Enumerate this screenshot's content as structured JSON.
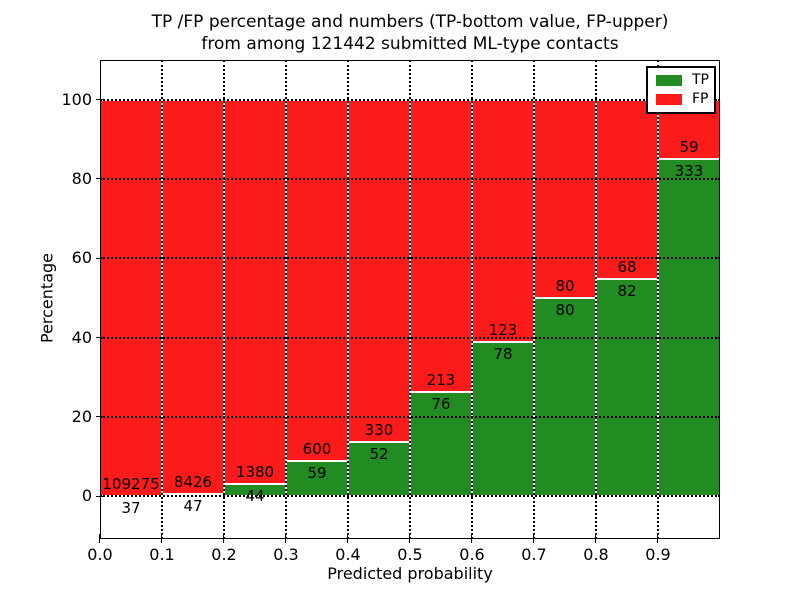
{
  "figure": {
    "title_line1": "TP /FP percentage and numbers (TP-bottom value, FP-upper)",
    "title_line2": "from among 121442 submitted ML-type contacts",
    "xlabel": "Predicted probability",
    "ylabel": "Percentage"
  },
  "legend": {
    "position": "upper right",
    "items": [
      {
        "label": "TP",
        "color": "#228b22"
      },
      {
        "label": "FP",
        "color": "#fb1b1b"
      }
    ]
  },
  "chart_data": {
    "type": "bar",
    "stacked": true,
    "title": "TP /FP percentage and numbers (TP-bottom value, FP-upper) from among 121442 submitted ML-type contacts",
    "xlabel": "Predicted probability",
    "ylabel": "Percentage",
    "total_contacts": 121442,
    "grid": true,
    "xlim": [
      0.0,
      1.0
    ],
    "ylim": [
      -10.75,
      110
    ],
    "bin_width": 0.1,
    "x_bin_edges": [
      0.0,
      0.1,
      0.2,
      0.3,
      0.4,
      0.5,
      0.6,
      0.7,
      0.8,
      0.9,
      1.0
    ],
    "xtick_labels": [
      "0.0",
      "0.1",
      "0.2",
      "0.3",
      "0.4",
      "0.5",
      "0.6",
      "0.7",
      "0.8",
      "0.9"
    ],
    "yticks": [
      0,
      20,
      40,
      60,
      80,
      100
    ],
    "series": [
      {
        "name": "TP",
        "color": "#228b22",
        "counts": [
          37,
          47,
          44,
          59,
          52,
          76,
          78,
          80,
          82,
          333
        ],
        "percent": [
          0.034,
          0.555,
          3.09,
          8.95,
          13.61,
          26.3,
          38.81,
          50.0,
          54.67,
          84.95
        ]
      },
      {
        "name": "FP",
        "color": "#fb1b1b",
        "counts": [
          109275,
          8426,
          1380,
          600,
          330,
          213,
          123,
          80,
          68,
          59
        ],
        "percent": [
          99.966,
          99.445,
          96.91,
          91.05,
          86.39,
          73.7,
          61.19,
          50.0,
          45.33,
          15.05
        ]
      }
    ]
  }
}
